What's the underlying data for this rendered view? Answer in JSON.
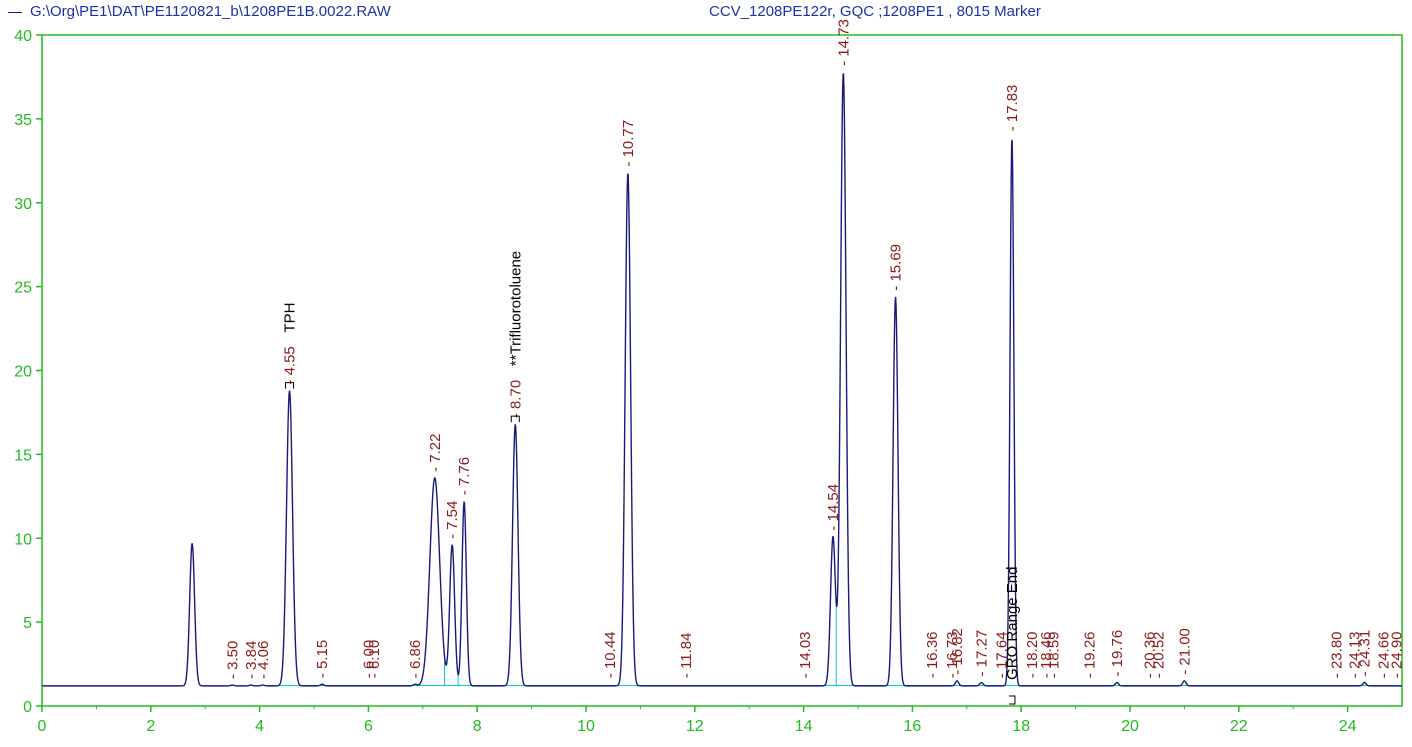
{
  "header": {
    "trace_label": "G:\\Org\\PE1\\DAT\\PE1120821_b\\1208PE1B.0022.RAW",
    "method_label": "CCV_1208PE122r, GQC ;1208PE1 , 8015 Marker"
  },
  "colors": {
    "axis": "#22bb22",
    "trace": "#1a1a7a",
    "baseline": "#00cccc",
    "rt_label": "#8b1a1a",
    "compound_label": "#000000",
    "header_text": "#1a33aa"
  },
  "chart_data": {
    "type": "line",
    "title": "",
    "xlabel": "",
    "ylabel": "",
    "xlim": [
      0,
      25
    ],
    "ylim": [
      0,
      40
    ],
    "xticks": [
      "0",
      "2",
      "4",
      "6",
      "8",
      "10",
      "12",
      "14",
      "16",
      "18",
      "20",
      "22",
      "24"
    ],
    "yticks": [
      "0",
      "5",
      "10",
      "15",
      "20",
      "25",
      "30",
      "35",
      "40"
    ],
    "grid": false,
    "baseline_level": 1.2,
    "series": [
      {
        "name": "G:\\Org\\PE1\\DAT\\PE1120821_b\\1208PE1B.0022.RAW",
        "peaks": [
          {
            "rt": 2.76,
            "height": 9.7,
            "width": 0.045
          },
          {
            "rt": 3.5,
            "height": 1.25,
            "width": 0.03
          },
          {
            "rt": 3.84,
            "height": 1.25,
            "width": 0.03
          },
          {
            "rt": 4.06,
            "height": 1.25,
            "width": 0.03
          },
          {
            "rt": 4.55,
            "height": 18.8,
            "width": 0.055
          },
          {
            "rt": 5.15,
            "height": 1.3,
            "width": 0.03
          },
          {
            "rt": 6.86,
            "height": 1.3,
            "width": 0.03
          },
          {
            "rt": 7.22,
            "height": 13.6,
            "width": 0.09
          },
          {
            "rt": 7.54,
            "height": 9.6,
            "width": 0.045
          },
          {
            "rt": 7.76,
            "height": 12.2,
            "width": 0.04
          },
          {
            "rt": 8.7,
            "height": 16.8,
            "width": 0.05
          },
          {
            "rt": 10.77,
            "height": 31.8,
            "width": 0.05
          },
          {
            "rt": 14.54,
            "height": 10.1,
            "width": 0.045
          },
          {
            "rt": 14.73,
            "height": 37.8,
            "width": 0.05
          },
          {
            "rt": 15.69,
            "height": 24.4,
            "width": 0.045
          },
          {
            "rt": 16.82,
            "height": 1.5,
            "width": 0.03
          },
          {
            "rt": 17.27,
            "height": 1.4,
            "width": 0.03
          },
          {
            "rt": 17.83,
            "height": 33.9,
            "width": 0.035
          },
          {
            "rt": 19.76,
            "height": 1.4,
            "width": 0.03
          },
          {
            "rt": 21.0,
            "height": 1.5,
            "width": 0.03
          },
          {
            "rt": 24.31,
            "height": 1.4,
            "width": 0.03
          }
        ]
      }
    ],
    "rt_labels": [
      {
        "text": "3.50",
        "x": 3.5,
        "y": 1.25
      },
      {
        "text": "3.84",
        "x": 3.84,
        "y": 1.25
      },
      {
        "text": "4.06",
        "x": 4.06,
        "y": 1.25
      },
      {
        "text": "4.55",
        "x": 4.55,
        "y": 18.8
      },
      {
        "text": "5.15",
        "x": 5.15,
        "y": 1.3
      },
      {
        "text": "6.00",
        "x": 6.0,
        "y": 1.3
      },
      {
        "text": "6.10",
        "x": 6.1,
        "y": 1.3
      },
      {
        "text": "6.86",
        "x": 6.86,
        "y": 1.3
      },
      {
        "text": "7.22",
        "x": 7.22,
        "y": 13.6
      },
      {
        "text": "7.54",
        "x": 7.54,
        "y": 9.6
      },
      {
        "text": "7.76",
        "x": 7.76,
        "y": 12.2
      },
      {
        "text": "8.70",
        "x": 8.7,
        "y": 16.8
      },
      {
        "text": "10.44",
        "x": 10.44,
        "y": 1.3
      },
      {
        "text": "10.77",
        "x": 10.77,
        "y": 31.8
      },
      {
        "text": "11.84",
        "x": 11.84,
        "y": 1.3
      },
      {
        "text": "14.03",
        "x": 14.03,
        "y": 1.3
      },
      {
        "text": "14.54",
        "x": 14.54,
        "y": 10.1
      },
      {
        "text": "14.73",
        "x": 14.73,
        "y": 37.8
      },
      {
        "text": "15.69",
        "x": 15.69,
        "y": 24.4
      },
      {
        "text": "16.36",
        "x": 16.36,
        "y": 1.3
      },
      {
        "text": "16.73",
        "x": 16.73,
        "y": 1.3
      },
      {
        "text": "16.82",
        "x": 16.82,
        "y": 1.5
      },
      {
        "text": "17.27",
        "x": 17.27,
        "y": 1.4
      },
      {
        "text": "17.64",
        "x": 17.64,
        "y": 1.3
      },
      {
        "text": "17.83",
        "x": 17.83,
        "y": 33.9
      },
      {
        "text": "18.20",
        "x": 18.2,
        "y": 1.3
      },
      {
        "text": "18.46",
        "x": 18.46,
        "y": 1.3
      },
      {
        "text": "18.59",
        "x": 18.59,
        "y": 1.3
      },
      {
        "text": "19.26",
        "x": 19.26,
        "y": 1.3
      },
      {
        "text": "19.76",
        "x": 19.76,
        "y": 1.4
      },
      {
        "text": "20.36",
        "x": 20.36,
        "y": 1.3
      },
      {
        "text": "20.52",
        "x": 20.52,
        "y": 1.3
      },
      {
        "text": "21.00",
        "x": 21.0,
        "y": 1.5
      },
      {
        "text": "23.80",
        "x": 23.8,
        "y": 1.3
      },
      {
        "text": "24.13",
        "x": 24.13,
        "y": 1.3
      },
      {
        "text": "24.31",
        "x": 24.31,
        "y": 1.4
      },
      {
        "text": "24.66",
        "x": 24.66,
        "y": 1.3
      },
      {
        "text": "24.90",
        "x": 24.9,
        "y": 1.3
      }
    ],
    "compound_labels": [
      {
        "text": "TPH",
        "x": 4.55
      },
      {
        "text": "**Trifluorotoluene",
        "x": 8.7
      },
      {
        "text": "GRO Range End",
        "x": 17.83
      }
    ],
    "baseline_drops": [
      7.4,
      7.65,
      14.6
    ]
  }
}
